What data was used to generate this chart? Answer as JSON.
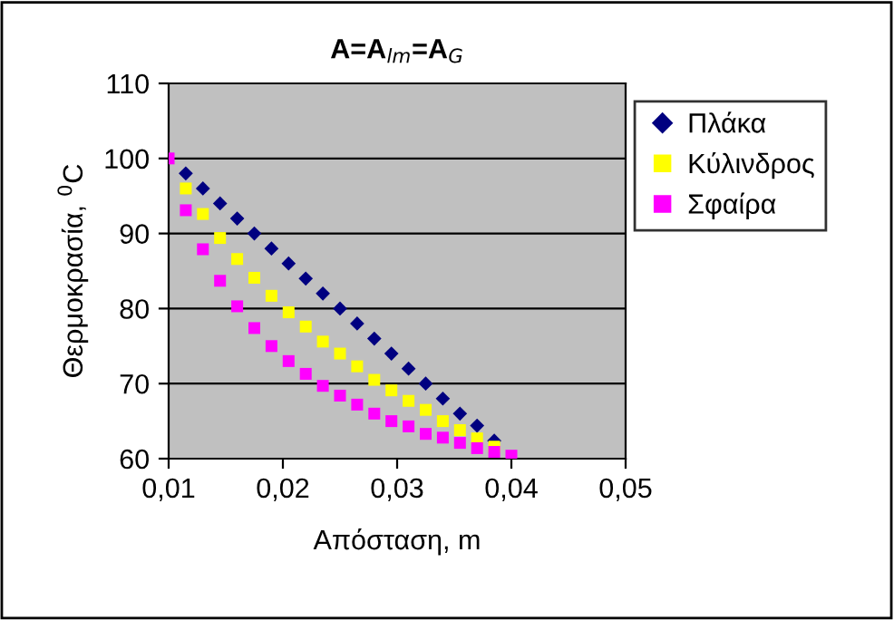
{
  "chart_data": {
    "type": "scatter",
    "title": "A=A$_{lm}$=A$_{G}$",
    "xlabel": "Απόσταση, m",
    "ylabel": "Θερμοκρασία, $^{0}$C",
    "x": [
      0.01,
      0.0115,
      0.013,
      0.0145,
      0.016,
      0.0175,
      0.019,
      0.0205,
      0.022,
      0.0235,
      0.025,
      0.0265,
      0.028,
      0.0295,
      0.031,
      0.0325,
      0.034,
      0.0355,
      0.037,
      0.0385,
      0.04
    ],
    "series": [
      {
        "name": "Πλάκα",
        "color": "#000080",
        "marker": "diamond",
        "values": [
          null,
          98,
          96,
          94,
          92,
          90,
          88,
          86,
          84,
          82,
          80,
          78,
          76,
          74,
          72,
          70,
          68,
          66,
          64.4,
          62.4,
          null
        ]
      },
      {
        "name": "Κύλινδρος",
        "color": "#ffff00",
        "marker": "square",
        "values": [
          null,
          96.0,
          92.6,
          89.4,
          86.6,
          84.1,
          81.7,
          79.5,
          77.6,
          75.6,
          74.0,
          72.3,
          70.5,
          69.1,
          67.7,
          66.5,
          65.0,
          63.8,
          62.7,
          61.6,
          null
        ]
      },
      {
        "name": "Σφαίρα",
        "color": "#ff00ff",
        "marker": "square",
        "values": [
          100,
          93.1,
          87.9,
          83.7,
          80.3,
          77.4,
          75.0,
          73.0,
          71.3,
          69.7,
          68.4,
          67.2,
          66.0,
          65.0,
          64.3,
          63.3,
          62.8,
          62.1,
          61.4,
          60.9,
          60.4
        ]
      }
    ],
    "xlim": [
      0.01,
      0.05
    ],
    "xticks": [
      {
        "value": 0.01,
        "label": "0,01"
      },
      {
        "value": 0.02,
        "label": "0,02"
      },
      {
        "value": 0.03,
        "label": "0,03"
      },
      {
        "value": 0.04,
        "label": "0,04"
      },
      {
        "value": 0.05,
        "label": "0,05"
      }
    ],
    "ylim": [
      60,
      110
    ],
    "yticks": [
      60,
      70,
      80,
      90,
      100,
      110
    ],
    "grid": "y",
    "legend": "right"
  }
}
